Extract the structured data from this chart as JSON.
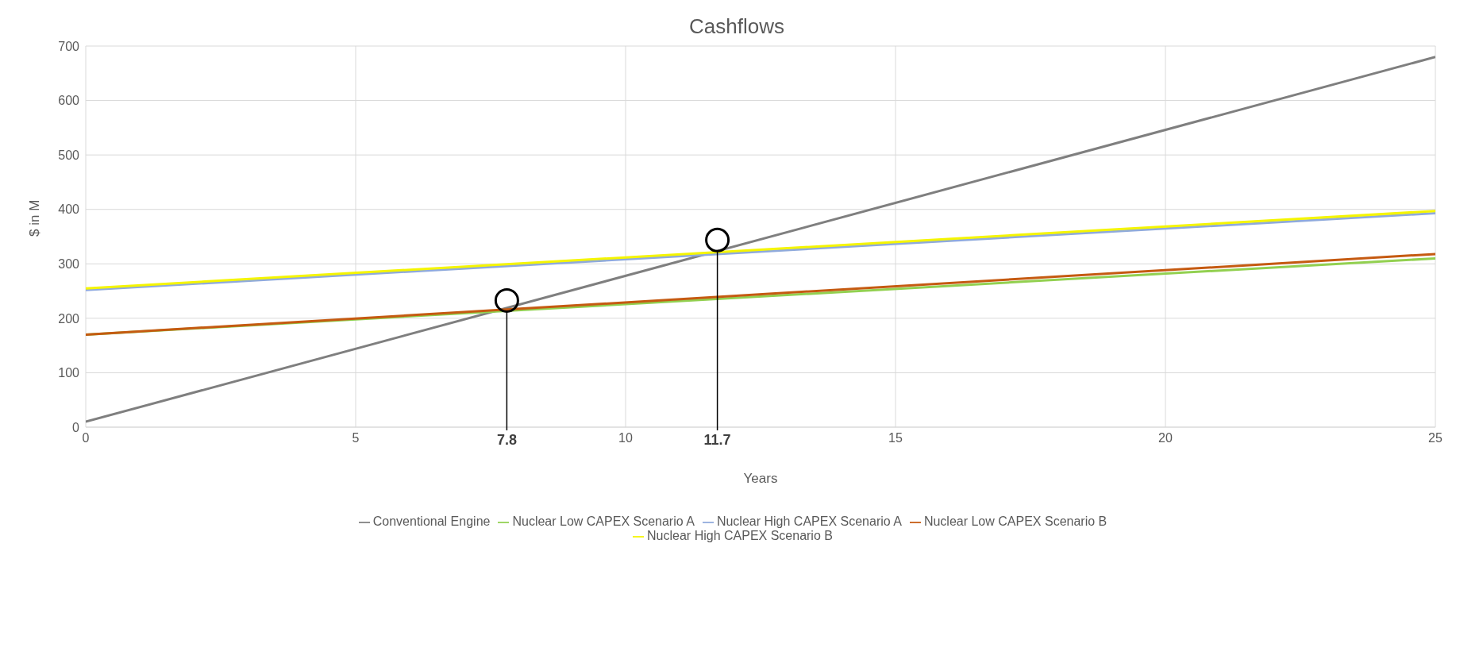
{
  "chart_data": {
    "type": "line",
    "title": "Cashflows",
    "xlabel": "Years",
    "ylabel": "$ in M",
    "x": [
      0,
      25
    ],
    "series": [
      {
        "name": "Conventional Engine",
        "color": "#7f7f7f",
        "values": [
          10,
          680
        ]
      },
      {
        "name": "Nuclear Low CAPEX Scenario A",
        "color": "#92d050",
        "values": [
          170,
          310
        ]
      },
      {
        "name": "Nuclear High CAPEX Scenario A",
        "color": "#8faadc",
        "values": [
          252,
          393
        ]
      },
      {
        "name": "Nuclear Low CAPEX Scenario B",
        "color": "#c55a11",
        "values": [
          170,
          318
        ]
      },
      {
        "name": "Nuclear High CAPEX Scenario B",
        "color": "#f5f500",
        "values": [
          255,
          397
        ]
      }
    ],
    "ref_lines": [
      {
        "axis": "x",
        "value": 7.8,
        "label": "7.8",
        "color": "#000000"
      },
      {
        "axis": "x",
        "value": 11.7,
        "label": "11.7",
        "color": "#000000"
      }
    ],
    "xlim": [
      0,
      25
    ],
    "xticks": [
      0,
      5,
      10,
      15,
      20,
      25
    ],
    "ylim": [
      0,
      700
    ],
    "yticks": [
      0,
      100,
      200,
      300,
      400,
      500,
      600,
      700
    ],
    "grid": true,
    "legend": "bottom",
    "marker": "none",
    "line_style": "solid"
  }
}
